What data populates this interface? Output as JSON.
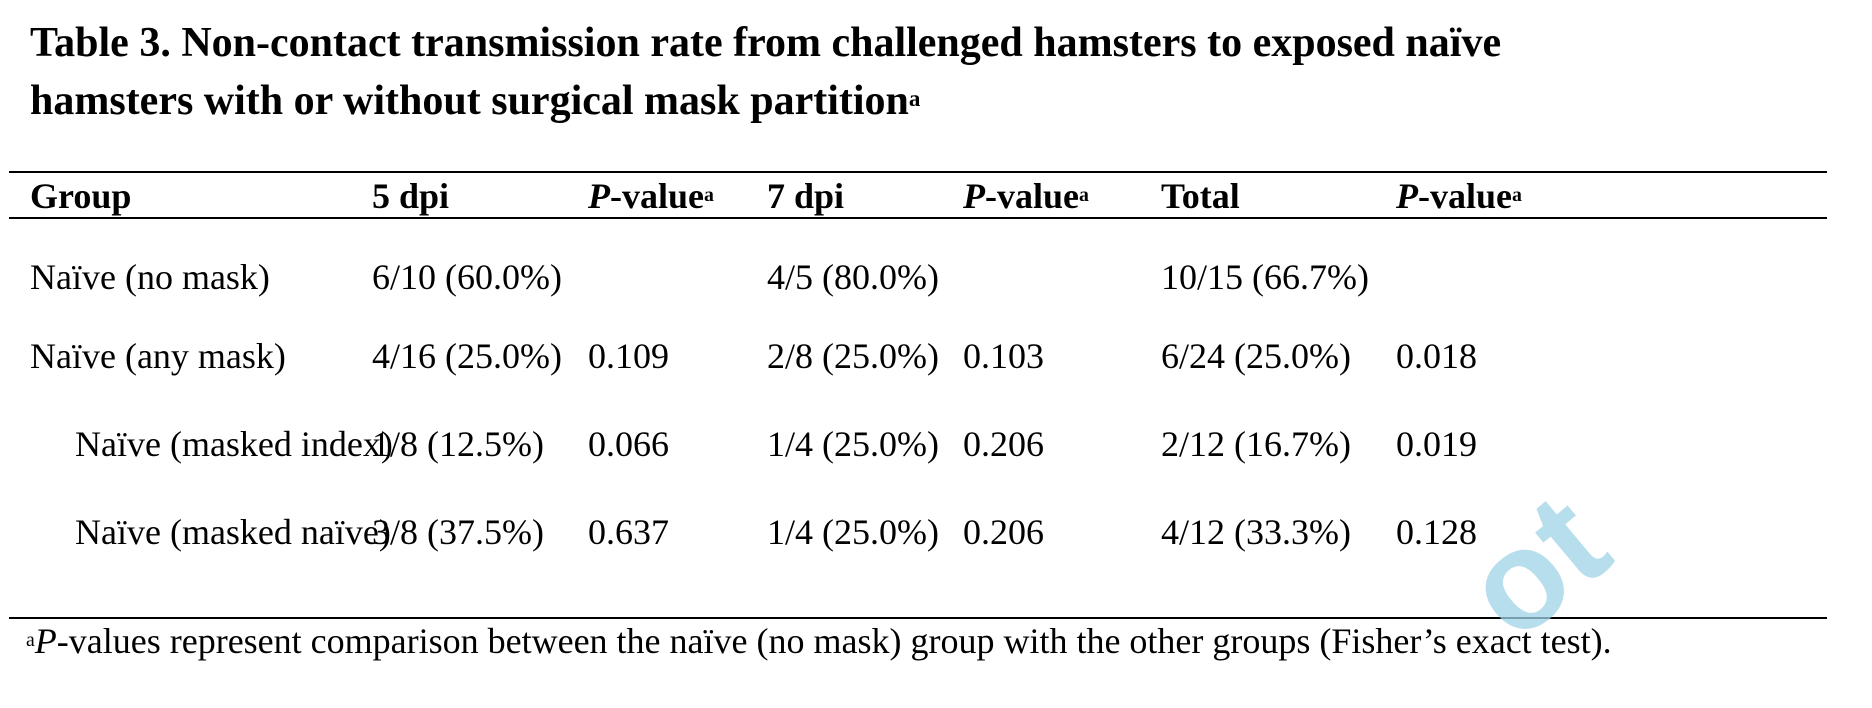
{
  "title": {
    "line1": "Table 3. Non-contact transmission rate from challenged hamsters to exposed naïve",
    "line2": "hamsters with or without surgical mask partition",
    "superscript": "a"
  },
  "table": {
    "headers": [
      {
        "text": "Group",
        "italic_prefix": "",
        "sup": ""
      },
      {
        "text": "5 dpi",
        "italic_prefix": "",
        "sup": ""
      },
      {
        "text": "-value",
        "italic_prefix": "P",
        "sup": "a"
      },
      {
        "text": "7 dpi",
        "italic_prefix": "",
        "sup": ""
      },
      {
        "text": "-value",
        "italic_prefix": "P",
        "sup": "a"
      },
      {
        "text": "Total",
        "italic_prefix": "",
        "sup": ""
      },
      {
        "text": "-value",
        "italic_prefix": "P",
        "sup": "a"
      }
    ],
    "rows": [
      [
        "Naïve (no mask)",
        "6/10 (60.0%)",
        "",
        "4/5 (80.0%)",
        "",
        "10/15 (66.7%)",
        ""
      ],
      [
        "Naïve (any mask)",
        "4/16 (25.0%)",
        "0.109",
        "2/8 (25.0%)",
        "0.103",
        "6/24 (25.0%)",
        "0.018"
      ],
      [
        "Naïve (masked index)",
        "1/8 (12.5%)",
        "0.066",
        "1/4 (25.0%)",
        "0.206",
        "2/12 (16.7%)",
        "0.019"
      ],
      [
        "Naïve (masked naïve)",
        "3/8 (37.5%)",
        "0.637",
        "1/4 (25.0%)",
        "0.206",
        "4/12 (33.3%)",
        "0.128"
      ]
    ]
  },
  "footnote": {
    "sup": "a",
    "italic": "P",
    "text": "-values represent comparison between the naïve (no mask) group with the other groups (Fisher’s exact test)."
  },
  "watermark": {
    "text": "ot",
    "color": "#9fd3e6"
  }
}
